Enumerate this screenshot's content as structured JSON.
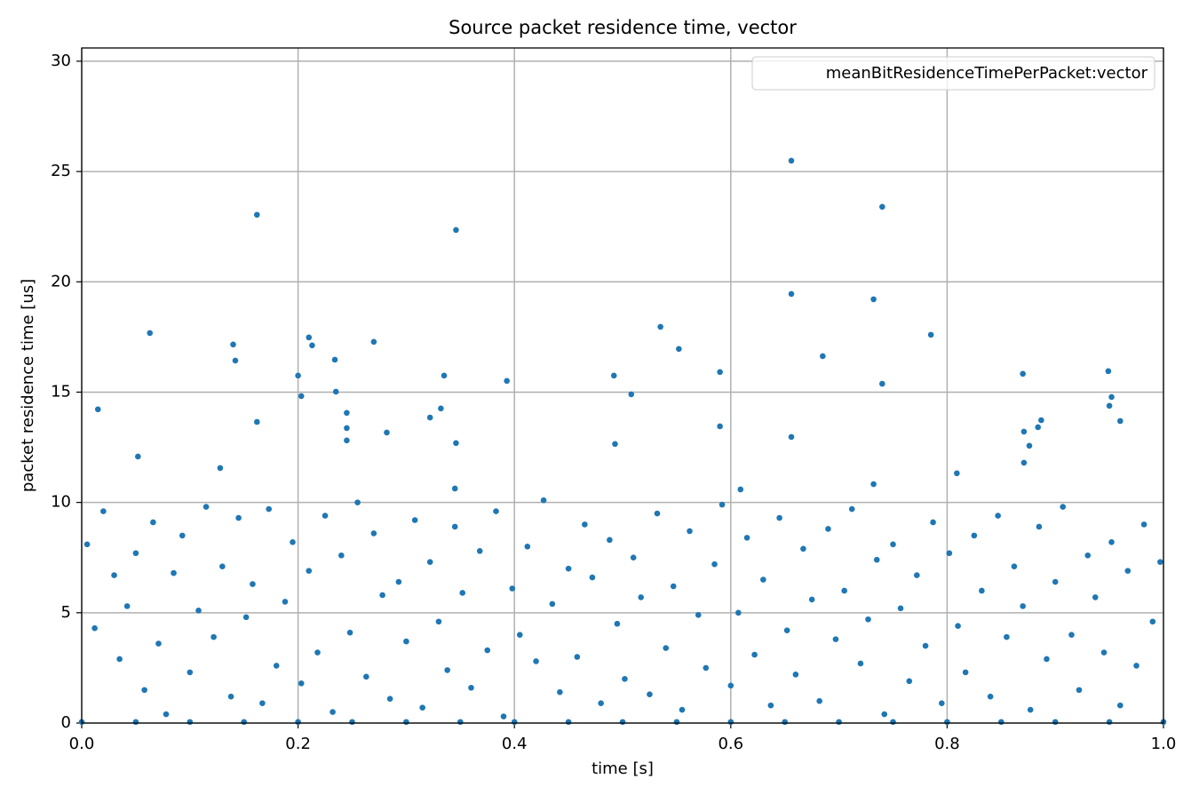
{
  "chart_data": {
    "type": "scatter",
    "title": "Source packet residence time, vector",
    "xlabel": "time [s]",
    "ylabel": "packet residence time [us]",
    "xlim": [
      0,
      1
    ],
    "ylim": [
      0,
      30.6
    ],
    "xticks": [
      {
        "value": 0,
        "label": "0.0"
      },
      0.2,
      0.4,
      0.6,
      0.8,
      {
        "value": 1,
        "label": "1.0"
      }
    ],
    "yticks": [
      0,
      5,
      10,
      15,
      20,
      25,
      30
    ],
    "grid": true,
    "legend": "upper right",
    "series": [
      {
        "name": "meanBitResidenceTimePerPacket:vector",
        "color": "#1f77b4",
        "x": [
          0.162,
          0.346,
          0.656,
          0.74,
          0.656,
          0.732,
          0.785,
          0.063,
          0.14,
          0.142,
          0.21,
          0.213,
          0.27,
          0.234,
          0.535,
          0.552,
          0.685,
          0.87,
          0.949,
          0.2,
          0.203,
          0.235,
          0.335,
          0.393,
          0.492,
          0.508,
          0.59,
          0.74,
          0.015,
          0.332,
          0.952,
          0.95,
          0.96,
          0.162,
          0.322,
          0.245,
          0.245,
          0.245,
          0.282,
          0.887,
          0.884,
          0.871,
          0.876,
          0.871,
          0.59,
          0.656,
          0.493,
          0.346,
          0.052,
          0.128,
          0.809,
          0.732,
          0.345,
          0.609,
          0.005,
          0.012,
          0.02,
          0.03,
          0.035,
          0.042,
          0.05,
          0.058,
          0.066,
          0.071,
          0.078,
          0.085,
          0.093,
          0.1,
          0.108,
          0.115,
          0.122,
          0.13,
          0.138,
          0.145,
          0.152,
          0.158,
          0.167,
          0.173,
          0.18,
          0.188,
          0.195,
          0.203,
          0.21,
          0.218,
          0.225,
          0.232,
          0.24,
          0.248,
          0.255,
          0.263,
          0.27,
          0.278,
          0.285,
          0.293,
          0.3,
          0.308,
          0.315,
          0.322,
          0.33,
          0.338,
          0.345,
          0.352,
          0.36,
          0.368,
          0.375,
          0.383,
          0.39,
          0.398,
          0.405,
          0.412,
          0.42,
          0.427,
          0.435,
          0.442,
          0.45,
          0.458,
          0.465,
          0.472,
          0.48,
          0.488,
          0.495,
          0.502,
          0.51,
          0.517,
          0.525,
          0.532,
          0.54,
          0.547,
          0.555,
          0.562,
          0.57,
          0.577,
          0.585,
          0.592,
          0.6,
          0.607,
          0.615,
          0.622,
          0.63,
          0.637,
          0.645,
          0.652,
          0.66,
          0.667,
          0.675,
          0.682,
          0.69,
          0.697,
          0.705,
          0.712,
          0.72,
          0.727,
          0.735,
          0.742,
          0.75,
          0.757,
          0.765,
          0.772,
          0.78,
          0.787,
          0.795,
          0.802,
          0.81,
          0.817,
          0.825,
          0.832,
          0.84,
          0.847,
          0.855,
          0.862,
          0.87,
          0.877,
          0.885,
          0.892,
          0.9,
          0.907,
          0.915,
          0.922,
          0.93,
          0.937,
          0.945,
          0.952,
          0.96,
          0.967,
          0.975,
          0.982,
          0.99,
          0.997,
          0,
          0.05,
          0.1,
          0.15,
          0.2,
          0.25,
          0.3,
          0.35,
          0.4,
          0.45,
          0.5,
          0.55,
          0.6,
          0.65,
          0.7,
          0.75,
          0.8,
          0.85,
          0.9,
          0.95,
          1
        ],
        "values": [
          23.04,
          22.35,
          25.49,
          23.4,
          19.45,
          19.21,
          17.6,
          17.68,
          17.16,
          16.43,
          17.48,
          17.12,
          17.28,
          16.47,
          17.96,
          16.96,
          16.63,
          15.83,
          15.95,
          15.75,
          14.82,
          15.02,
          15.75,
          15.51,
          15.75,
          14.9,
          15.91,
          15.38,
          14.22,
          14.26,
          14.78,
          14.38,
          13.69,
          13.65,
          13.85,
          14.06,
          13.37,
          12.81,
          13.17,
          13.73,
          13.41,
          13.21,
          12.57,
          11.8,
          13.45,
          12.97,
          12.65,
          12.69,
          12.08,
          11.56,
          11.32,
          10.83,
          10.63,
          10.59,
          8.1,
          4.3,
          9.6,
          6.7,
          2.9,
          5.3,
          7.7,
          1.5,
          9.1,
          3.6,
          0.4,
          6.8,
          8.5,
          2.3,
          5.1,
          9.8,
          3.9,
          7.1,
          1.2,
          9.3,
          4.8,
          6.3,
          0.9,
          9.7,
          2.6,
          5.5,
          8.2,
          1.8,
          6.9,
          3.2,
          9.4,
          0.5,
          7.6,
          4.1,
          10.0,
          2.1,
          8.6,
          5.8,
          1.1,
          6.4,
          3.7,
          9.2,
          0.7,
          7.3,
          4.6,
          2.4,
          8.9,
          5.9,
          1.6,
          7.8,
          3.3,
          9.6,
          0.3,
          6.1,
          4.0,
          8.0,
          2.8,
          10.1,
          5.4,
          1.4,
          7.0,
          3.0,
          9.0,
          6.6,
          0.9,
          8.3,
          4.5,
          2.0,
          7.5,
          5.7,
          1.3,
          9.5,
          3.4,
          6.2,
          0.6,
          8.7,
          4.9,
          2.5,
          7.2,
          9.9,
          1.7,
          5.0,
          8.4,
          3.1,
          6.5,
          0.8,
          9.3,
          4.2,
          2.2,
          7.9,
          5.6,
          1.0,
          8.8,
          3.8,
          6.0,
          9.7,
          2.7,
          4.7,
          7.4,
          0.4,
          8.1,
          5.2,
          1.9,
          6.7,
          3.5,
          9.1,
          0.9,
          7.7,
          4.4,
          2.3,
          8.5,
          6.0,
          1.2,
          9.4,
          3.9,
          7.1,
          5.3,
          0.6,
          8.9,
          2.9,
          6.4,
          9.8,
          4.0,
          1.5,
          7.6,
          5.7,
          3.2,
          8.2,
          0.8,
          6.9,
          2.6,
          9.0,
          4.6,
          7.3,
          0.05,
          0.05,
          0.05,
          0.05,
          0.05,
          0.05,
          0.05,
          0.05,
          0.05,
          0.05,
          0.05,
          0.05,
          0.05,
          0.05,
          0.05,
          0.05,
          0.05,
          0.05,
          0.05,
          0.05,
          0.05
        ]
      }
    ]
  }
}
